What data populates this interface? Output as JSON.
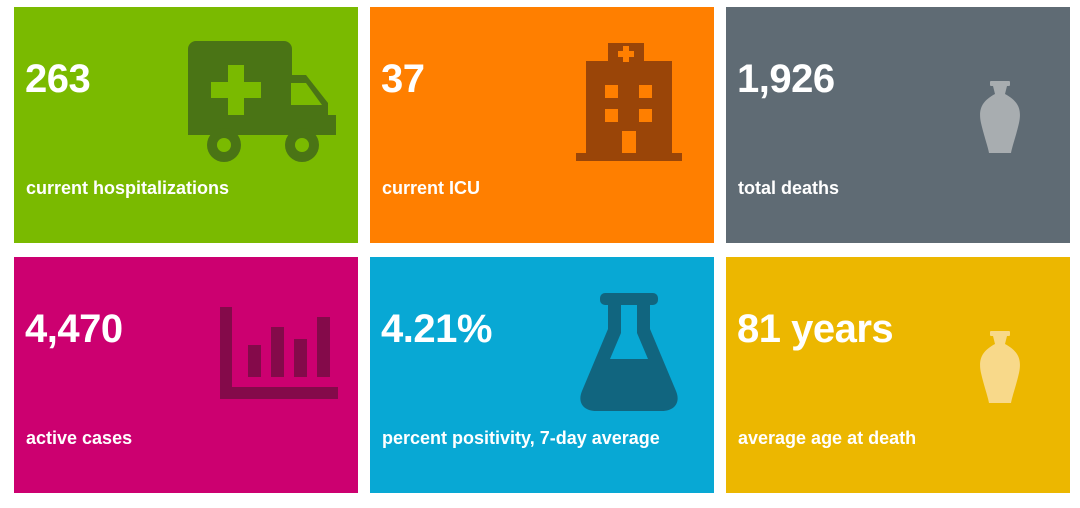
{
  "tiles": [
    {
      "value": "263",
      "label": "current hospitalizations",
      "icon": "ambulance-icon",
      "color": "#7aba00",
      "icon_color": "#4a7415"
    },
    {
      "value": "37",
      "label": "current ICU",
      "icon": "hospital-building-icon",
      "color": "#ff7f00",
      "icon_color": "#9a4508"
    },
    {
      "value": "1,926",
      "label": "total deaths",
      "icon": "urn-icon",
      "color": "#5f6b74",
      "icon_color": "#a8adb0"
    },
    {
      "value": "4,470",
      "label": "active cases",
      "icon": "bar-chart-icon",
      "color": "#cc0070",
      "icon_color": "#840a4a"
    },
    {
      "value": "4.21%",
      "label": "percent positivity, 7-day average",
      "icon": "flask-icon",
      "color": "#08a8d4",
      "icon_color": "#11657f"
    },
    {
      "value": "81 years",
      "label": "average age at death",
      "icon": "urn-icon",
      "color": "#ecb700",
      "icon_color": "#f8d98a"
    }
  ]
}
